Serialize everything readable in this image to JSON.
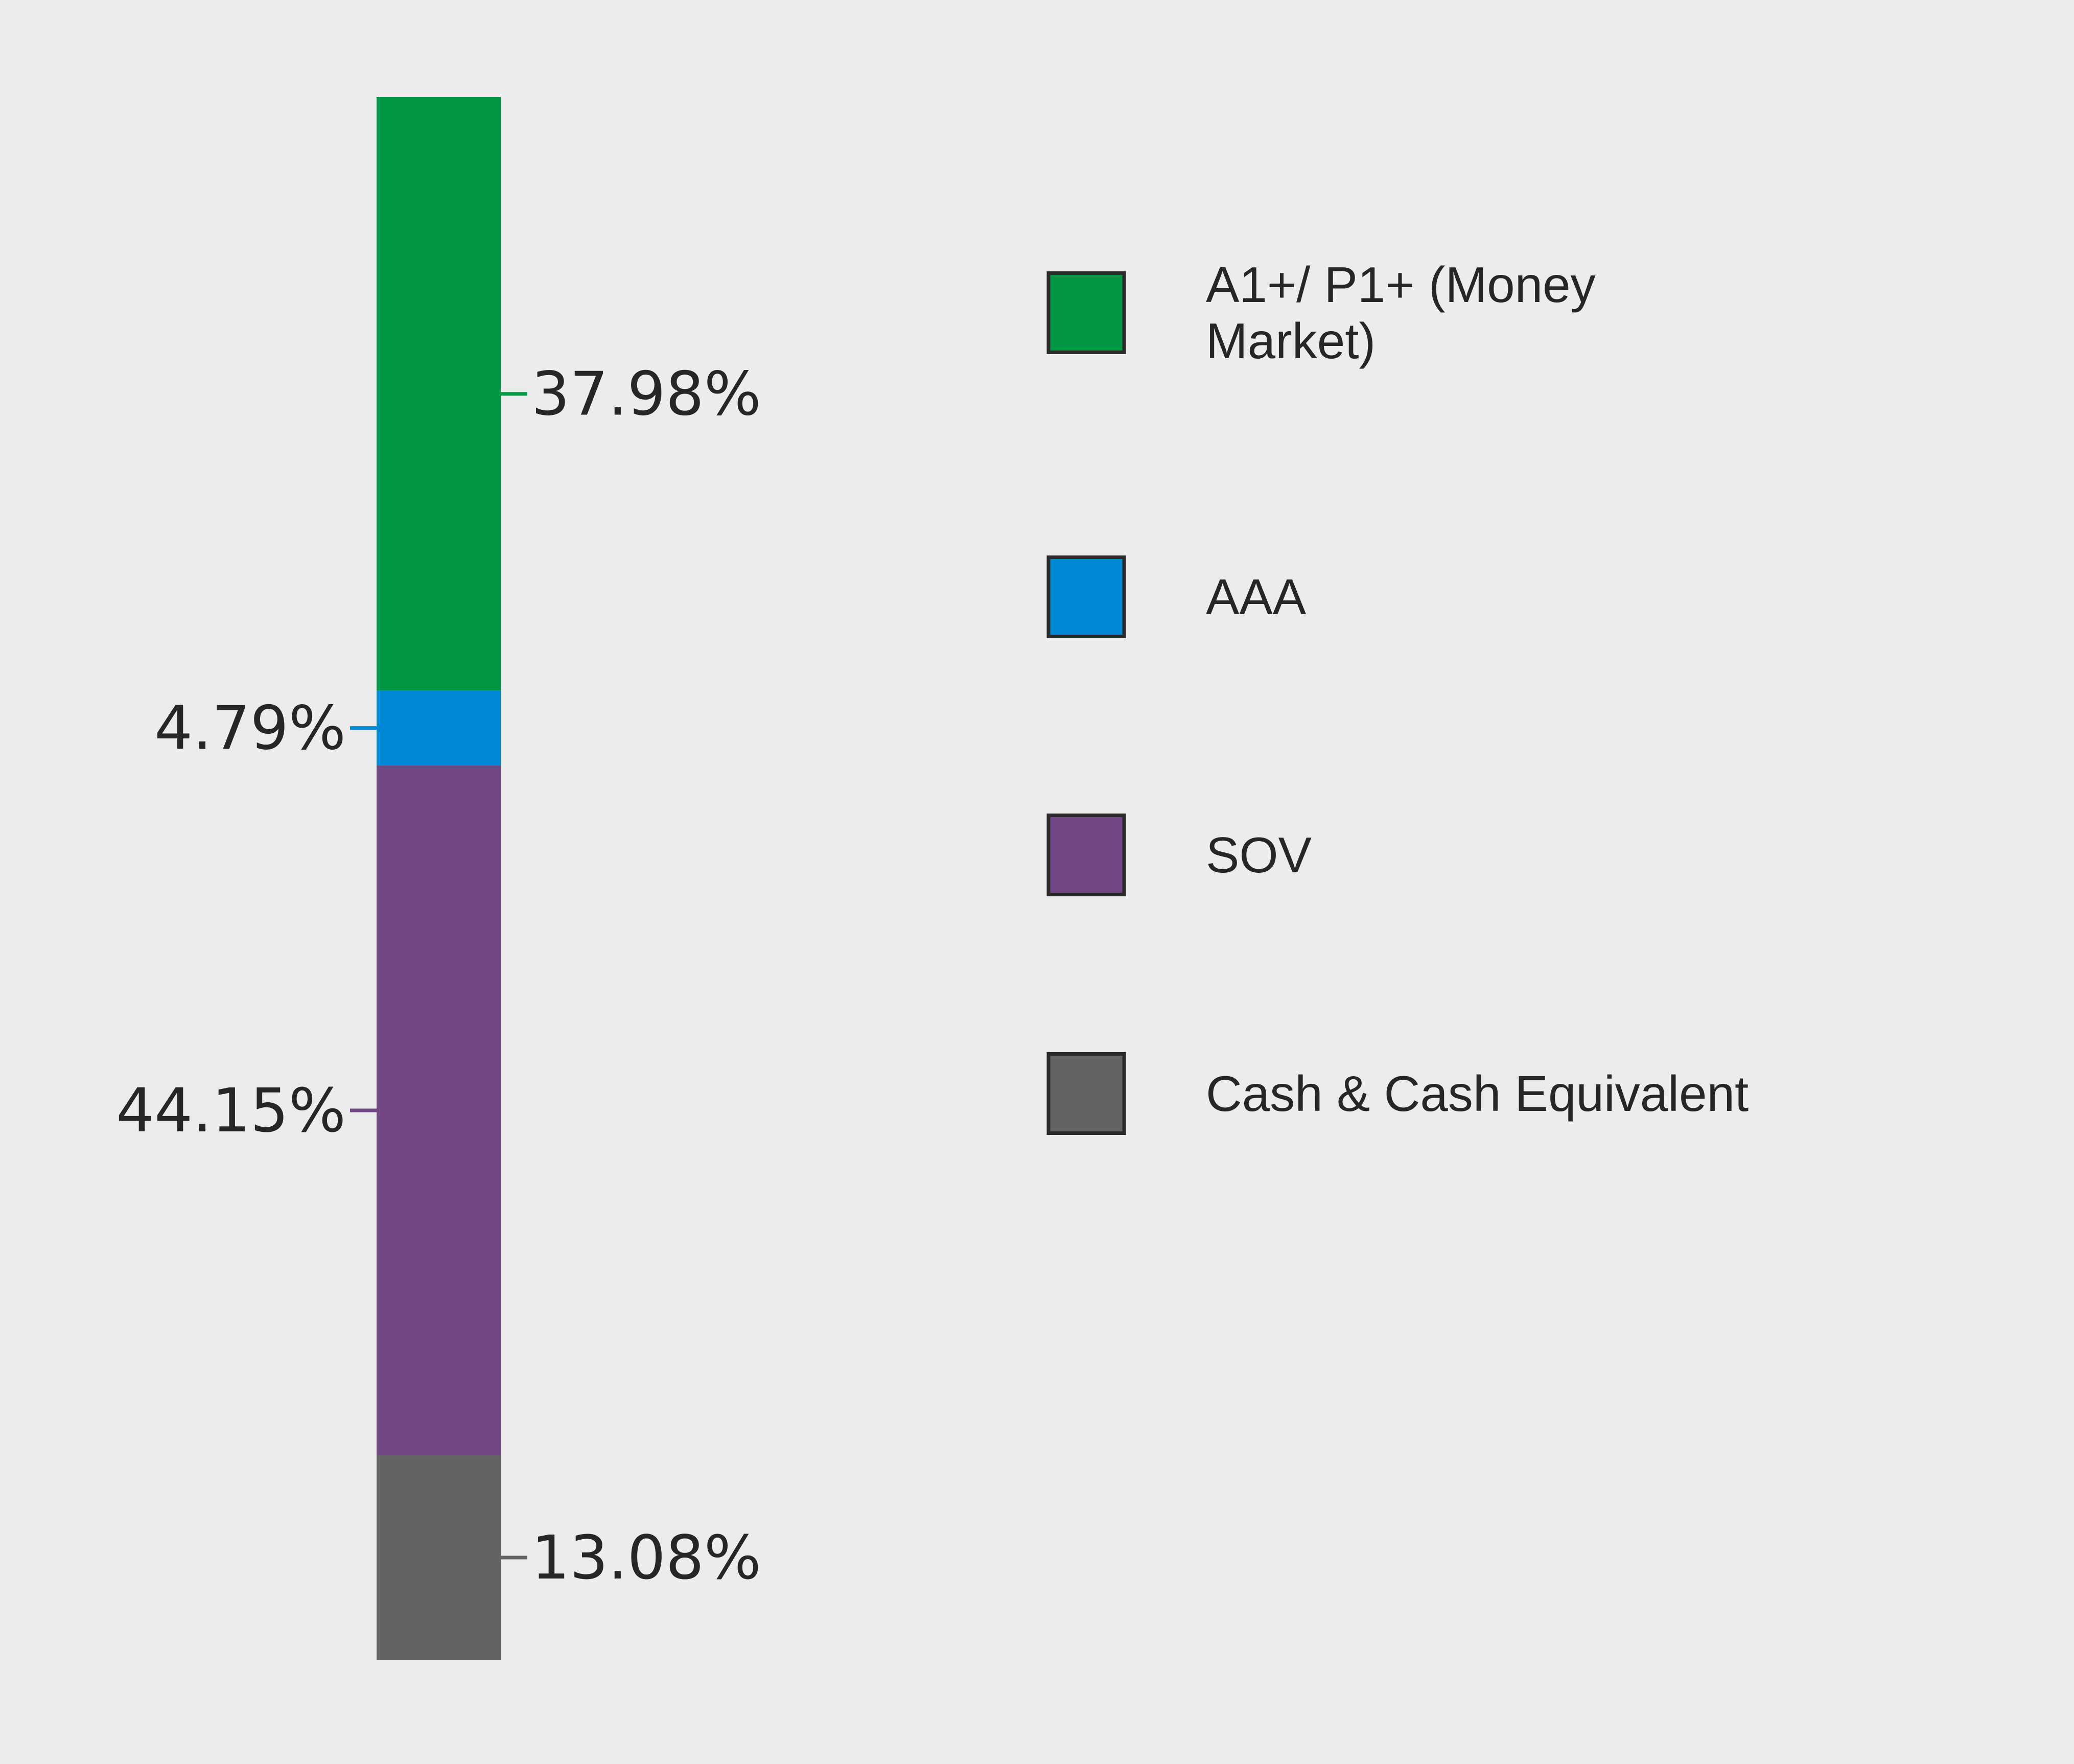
{
  "chart_data": {
    "type": "bar",
    "stacked": true,
    "orientation": "vertical",
    "series": [
      {
        "name": "A1+/ P1+ (Money Market)",
        "value": 37.98,
        "label": "37.98%",
        "color": "#009845",
        "label_side": "right"
      },
      {
        "name": "AAA",
        "value": 4.79,
        "label": "4.79%",
        "color": "#0089d6",
        "label_side": "left"
      },
      {
        "name": "SOV",
        "value": 44.15,
        "label": "44.15%",
        "color": "#714683",
        "label_side": "left"
      },
      {
        "name": "Cash & Cash Equivalent",
        "value": 13.08,
        "label": "13.08%",
        "color": "#636363",
        "label_side": "right"
      }
    ],
    "legend": {
      "position": "right",
      "items": [
        {
          "lines": [
            "A1+/ P1+ (Money",
            "Market)"
          ],
          "color": "#009845"
        },
        {
          "lines": [
            "AAA"
          ],
          "color": "#0089d6"
        },
        {
          "lines": [
            "SOV"
          ],
          "color": "#714683"
        },
        {
          "lines": [
            "Cash & Cash Equivalent"
          ],
          "color": "#636363"
        }
      ]
    },
    "grid": false
  }
}
